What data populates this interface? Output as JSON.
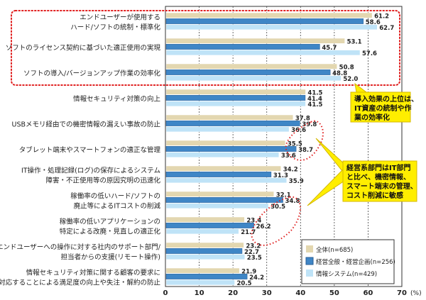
{
  "chart_data": {
    "type": "bar",
    "orientation": "horizontal",
    "categories": [
      [
        "エンドユーザーが使用する",
        "ハード/ソフトの統制・標準化"
      ],
      [
        "ソフトのライセンス契約に基づいた適正使用の実現"
      ],
      [
        "ソフトの導入/バージョンアップ作業の効率化"
      ],
      [
        "情報セキュリティ対策の向上"
      ],
      [
        "USBメモリ経由での機密情報の漏えい事故の防止"
      ],
      [
        "タブレット端末やスマートフォンの適正な管理"
      ],
      [
        "IT操作・処理記録(ログ)の保存によるシステム",
        "障害・不正使用等の原因究明の迅速化"
      ],
      [
        "稼働率の低いハード/ソフトの",
        "廃止等によるITコストの削減"
      ],
      [
        "稼働率の低いアプリケーションの",
        "特定による改廃・見直しの適正化"
      ],
      [
        "エンドユーザーへの操作に対する社内のサポート部門/",
        "担当者からの支援(リモート操作)"
      ],
      [
        "情報セキュリティ対策に関する顧客の要求に",
        "対応することによる満足度の向上や失注・解約の防止"
      ]
    ],
    "series": [
      {
        "name": "全体(n=685)",
        "color": "#e3d7b0",
        "values": [
          61.2,
          53.1,
          50.8,
          41.5,
          37.8,
          35.5,
          34.2,
          32.1,
          23.4,
          23.2,
          21.9
        ]
      },
      {
        "name": "経営全般・経営企画(n=256)",
        "color": "#3f86c6",
        "values": [
          58.6,
          45.7,
          48.8,
          41.4,
          39.8,
          38.7,
          31.3,
          34.8,
          26.2,
          22.7,
          24.2
        ]
      },
      {
        "name": "情報システム(n=429)",
        "color": "#bfe3f7",
        "values": [
          62.7,
          57.6,
          52.0,
          41.5,
          36.6,
          33.6,
          35.9,
          30.5,
          21.7,
          23.5,
          20.5
        ]
      }
    ],
    "xlim": [
      0,
      70
    ],
    "xticks": [
      "0",
      "10",
      "20",
      "30",
      "40",
      "50",
      "60",
      "70"
    ],
    "xunit": "(%)",
    "legend_position": "bottom-right",
    "annotations": [
      [
        "導入効果の上位は、",
        "IT資産の統制や作",
        "業の効率化"
      ],
      [
        "経営系部門はIT部門",
        "と比べ、機密情報、",
        "スマート端末の管理、",
        "コスト削減に敏感"
      ]
    ]
  }
}
